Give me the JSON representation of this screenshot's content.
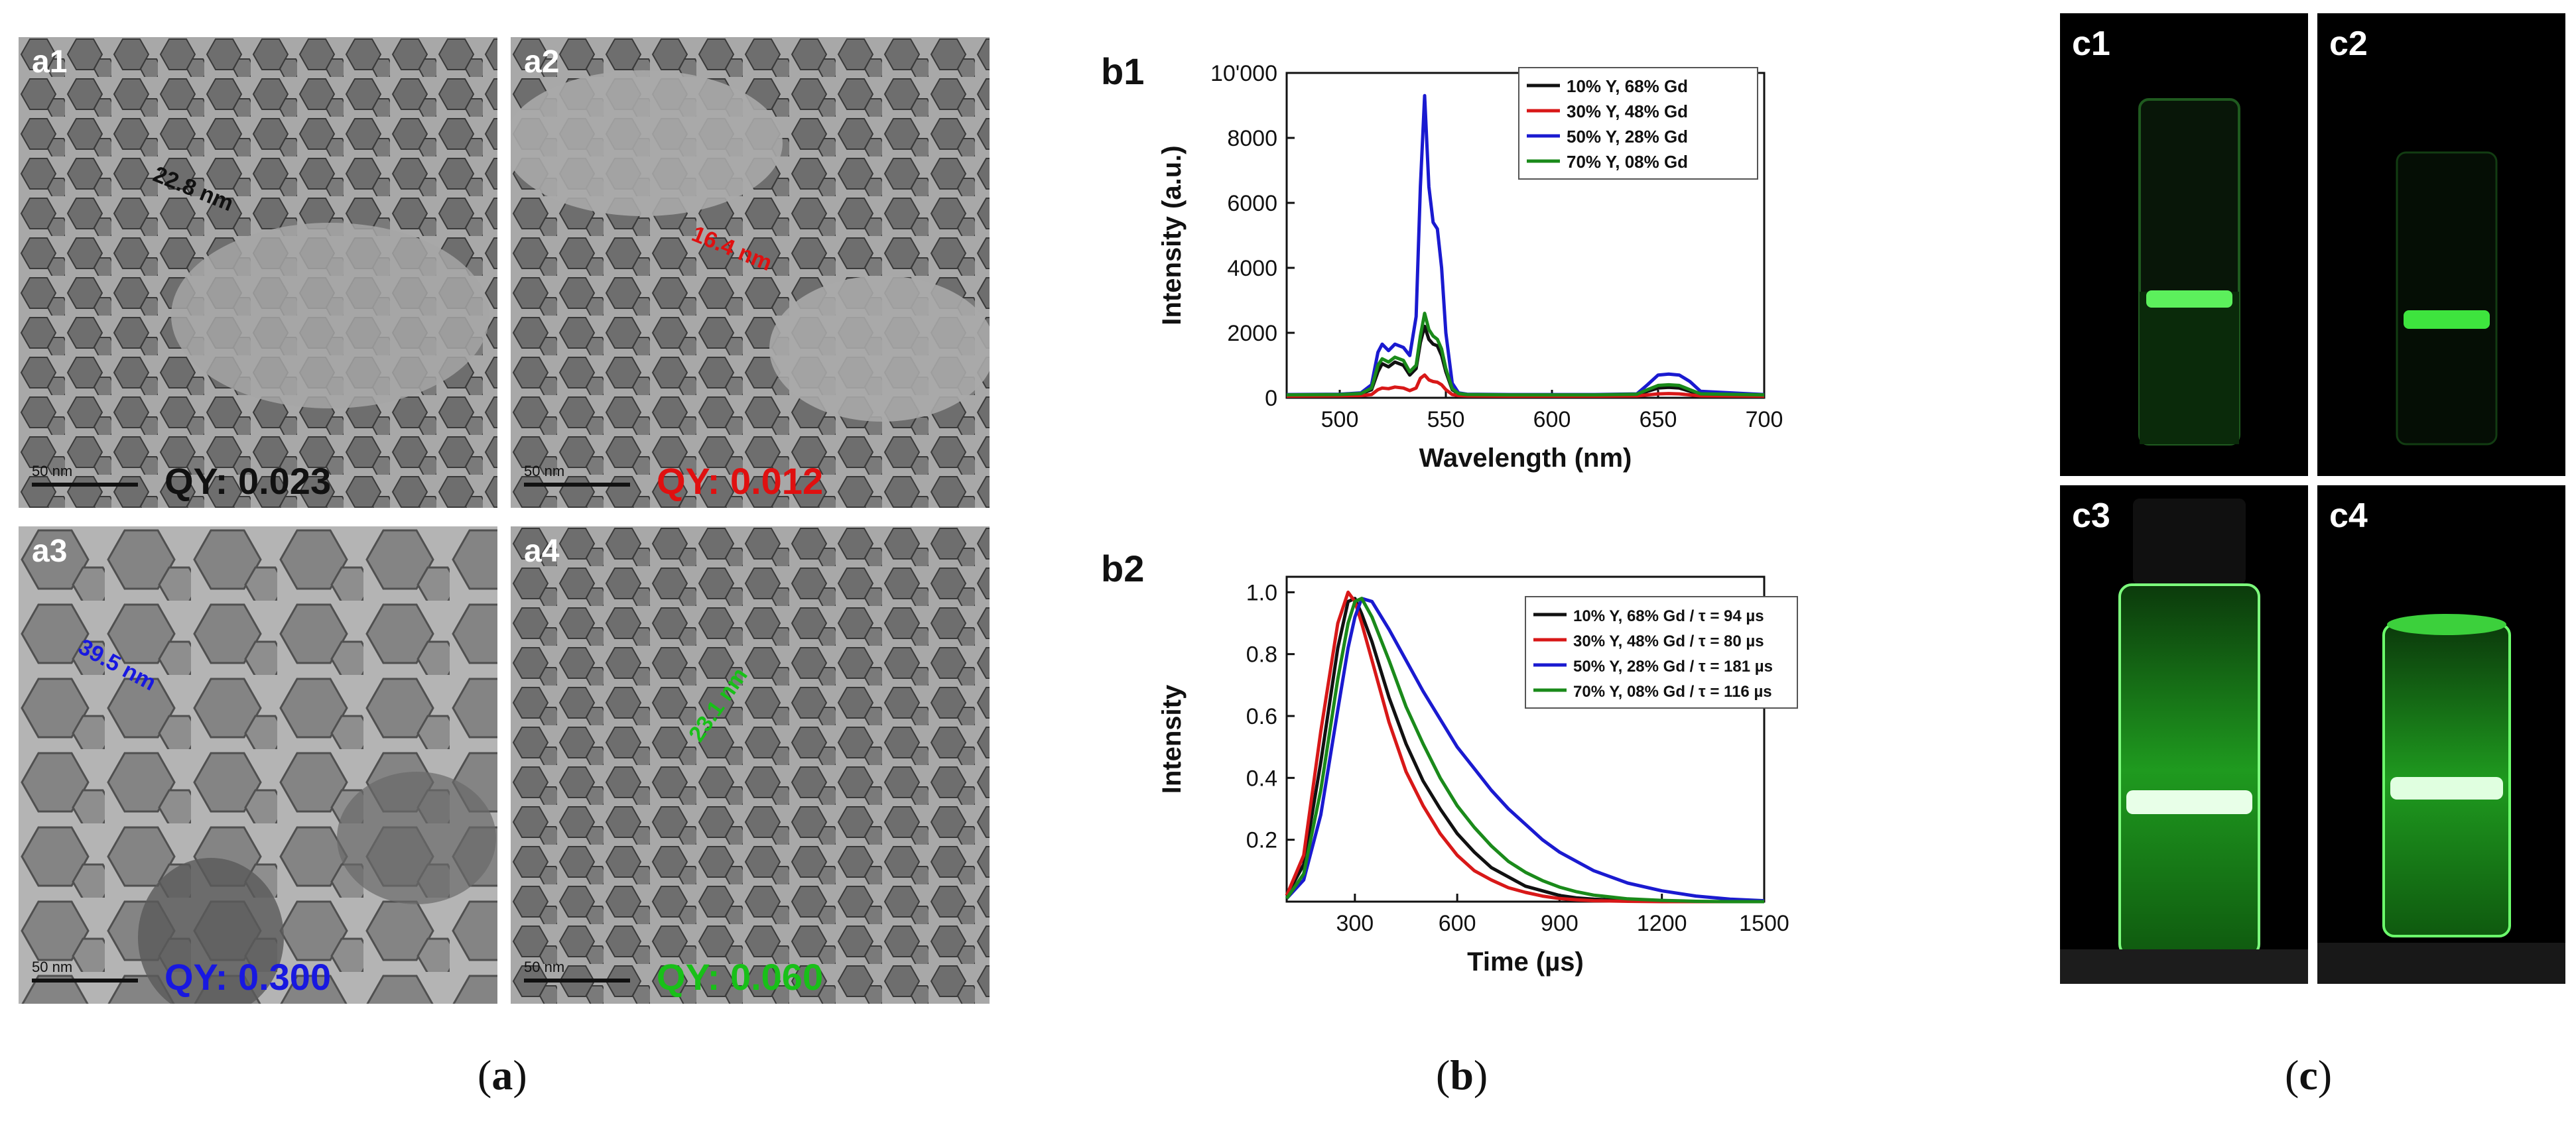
{
  "panel_a": {
    "images": [
      {
        "label": "a1",
        "scale": "50 nm",
        "qy": "QY: 0.023",
        "qy_color": "#111111",
        "size": "22.8 nm",
        "size_color": "#111111"
      },
      {
        "label": "a2",
        "scale": "50 nm",
        "qy": "QY: 0.012",
        "qy_color": "#e01010",
        "size": "16.4 nm",
        "size_color": "#e01010"
      },
      {
        "label": "a3",
        "scale": "50 nm",
        "qy": "QY: 0.300",
        "qy_color": "#1818e0",
        "size": "39.5 nm",
        "size_color": "#1818e0"
      },
      {
        "label": "a4",
        "scale": "50 nm",
        "qy": "QY: 0.060",
        "qy_color": "#18c018",
        "size": "23.1 nm",
        "size_color": "#18c018"
      }
    ],
    "caption": "a"
  },
  "panel_b": {
    "caption": "b",
    "label_b1": "b1",
    "label_b2": "b2"
  },
  "panel_c": {
    "caption": "c",
    "vials": [
      "c1",
      "c2",
      "c3",
      "c4"
    ]
  },
  "colors": {
    "black": "#111111",
    "red": "#d81818",
    "blue": "#1a1ad0",
    "green": "#1a8a1a"
  },
  "chart_data": [
    {
      "type": "line",
      "title": "b1",
      "xlabel": "Wavelength (nm)",
      "ylabel": "Intensity (a.u.)",
      "xlim": [
        475,
        700
      ],
      "ylim": [
        0,
        10000
      ],
      "xticks": [
        "500",
        "550",
        "600",
        "650",
        "700"
      ],
      "yticks": [
        "0",
        "2000",
        "4000",
        "6000",
        "8000",
        "10'000"
      ],
      "x": [
        475,
        500,
        510,
        515,
        518,
        520,
        523,
        526,
        530,
        533,
        536,
        538,
        540,
        542,
        544,
        546,
        548,
        550,
        553,
        556,
        560,
        580,
        620,
        640,
        645,
        650,
        655,
        660,
        665,
        670,
        700
      ],
      "series": [
        {
          "name": "10% Y, 68% Gd",
          "color": "#111111",
          "values": [
            80,
            90,
            120,
            250,
            800,
            1050,
            950,
            1100,
            1000,
            700,
            900,
            1700,
            2200,
            1800,
            1650,
            1600,
            1300,
            800,
            250,
            120,
            90,
            80,
            80,
            90,
            200,
            300,
            320,
            300,
            200,
            100,
            80
          ]
        },
        {
          "name": "30% Y, 48% Gd",
          "color": "#d81818",
          "values": [
            50,
            60,
            70,
            100,
            250,
            300,
            280,
            330,
            300,
            220,
            300,
            600,
            700,
            550,
            500,
            480,
            400,
            250,
            100,
            70,
            60,
            50,
            50,
            60,
            90,
            120,
            130,
            120,
            90,
            60,
            50
          ]
        },
        {
          "name": "50% Y, 28% Gd",
          "color": "#1a1ad0",
          "values": [
            100,
            110,
            150,
            400,
            1400,
            1650,
            1450,
            1650,
            1550,
            1300,
            2500,
            6500,
            9300,
            6500,
            5400,
            5200,
            4000,
            2000,
            450,
            150,
            110,
            100,
            100,
            120,
            400,
            700,
            730,
            700,
            500,
            200,
            100
          ]
        },
        {
          "name": "70% Y, 08% Gd",
          "color": "#1a8a1a",
          "values": [
            90,
            100,
            130,
            300,
            1000,
            1200,
            1100,
            1250,
            1150,
            800,
            1000,
            1900,
            2600,
            2100,
            1900,
            1800,
            1500,
            900,
            280,
            130,
            100,
            90,
            90,
            110,
            250,
            380,
            400,
            380,
            250,
            120,
            90
          ]
        }
      ],
      "legend": "top-right"
    },
    {
      "type": "line",
      "title": "b2",
      "xlabel": "Time (µs)",
      "ylabel": "Intensity",
      "xlim": [
        100,
        1500
      ],
      "ylim": [
        0,
        1.05
      ],
      "xticks": [
        "300",
        "600",
        "900",
        "1200",
        "1500"
      ],
      "yticks": [
        "0.2",
        "0.4",
        "0.6",
        "0.8",
        "1.0"
      ],
      "x": [
        100,
        150,
        200,
        250,
        280,
        300,
        320,
        350,
        400,
        450,
        500,
        550,
        600,
        650,
        700,
        750,
        800,
        850,
        900,
        950,
        1000,
        1100,
        1200,
        1300,
        1400,
        1500
      ],
      "series": [
        {
          "name": "10% Y, 68% Gd / τ = 94 µs",
          "color": "#111111",
          "values": [
            0.02,
            0.12,
            0.45,
            0.82,
            0.97,
            0.98,
            0.93,
            0.84,
            0.66,
            0.51,
            0.39,
            0.3,
            0.22,
            0.16,
            0.11,
            0.08,
            0.05,
            0.035,
            0.02,
            0.012,
            0.008,
            0.003,
            0.001,
            0.0,
            0.0,
            0.0
          ]
        },
        {
          "name": "30% Y, 48% Gd / τ = 80 µs",
          "color": "#d81818",
          "values": [
            0.02,
            0.15,
            0.55,
            0.9,
            1.0,
            0.97,
            0.9,
            0.78,
            0.58,
            0.42,
            0.31,
            0.22,
            0.15,
            0.1,
            0.07,
            0.045,
            0.03,
            0.018,
            0.01,
            0.006,
            0.003,
            0.001,
            0.0,
            0.0,
            0.0,
            0.0
          ]
        },
        {
          "name": "50% Y, 28% Gd / τ = 181 µs",
          "color": "#1a1ad0",
          "values": [
            0.01,
            0.07,
            0.28,
            0.62,
            0.82,
            0.92,
            0.98,
            0.97,
            0.88,
            0.78,
            0.68,
            0.59,
            0.5,
            0.43,
            0.36,
            0.3,
            0.25,
            0.2,
            0.16,
            0.13,
            0.1,
            0.06,
            0.035,
            0.018,
            0.008,
            0.003
          ]
        },
        {
          "name": "70% Y, 08% Gd / τ = 116 µs",
          "color": "#1a8a1a",
          "values": [
            0.01,
            0.09,
            0.36,
            0.72,
            0.9,
            0.97,
            0.98,
            0.92,
            0.78,
            0.63,
            0.51,
            0.4,
            0.31,
            0.24,
            0.18,
            0.13,
            0.095,
            0.068,
            0.047,
            0.032,
            0.021,
            0.009,
            0.004,
            0.001,
            0.0,
            0.0
          ]
        }
      ],
      "legend": "top-right"
    }
  ]
}
